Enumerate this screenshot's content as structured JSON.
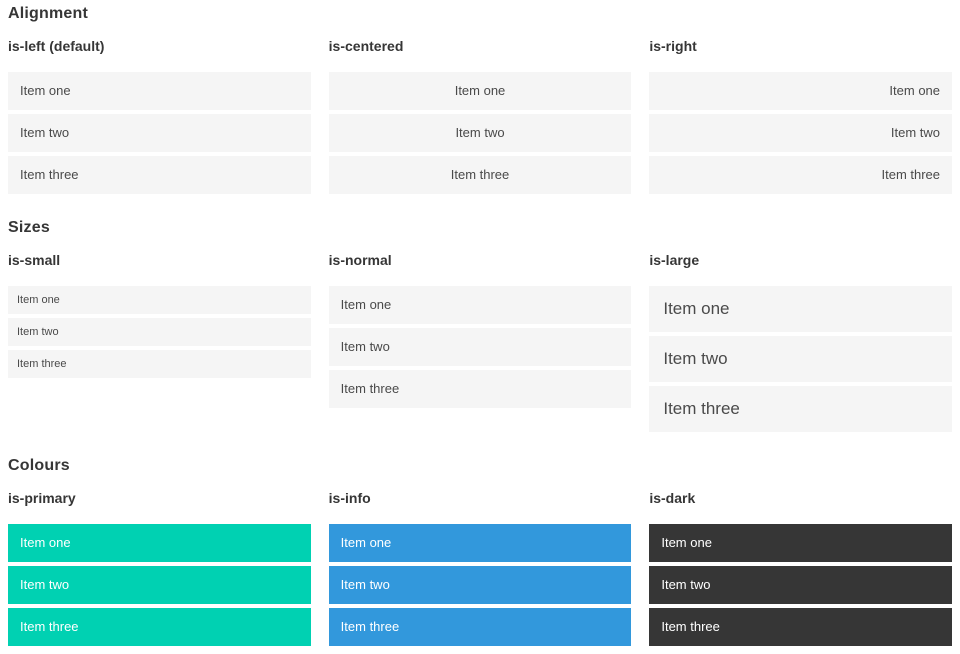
{
  "page": {
    "colors": {
      "primary": "#00d1b2",
      "info": "#3298dc",
      "dark": "#363636",
      "item_bg": "#f5f5f5",
      "item_text": "#4a4a4a",
      "heading": "#363636"
    },
    "sections": [
      {
        "title": "Alignment",
        "columns": [
          {
            "label": "is-left (default)",
            "variant": "align-left",
            "items": [
              "Item one",
              "Item two",
              "Item three"
            ]
          },
          {
            "label": "is-centered",
            "variant": "align-center",
            "items": [
              "Item one",
              "Item two",
              "Item three"
            ]
          },
          {
            "label": "is-right",
            "variant": "align-right",
            "items": [
              "Item one",
              "Item two",
              "Item three"
            ]
          }
        ]
      },
      {
        "title": "Sizes",
        "columns": [
          {
            "label": "is-small",
            "variant": "size-small",
            "items": [
              "Item one",
              "Item two",
              "Item three"
            ]
          },
          {
            "label": "is-normal",
            "variant": "size-normal",
            "items": [
              "Item one",
              "Item two",
              "Item three"
            ]
          },
          {
            "label": "is-large",
            "variant": "size-large",
            "items": [
              "Item one",
              "Item two",
              "Item three"
            ]
          }
        ]
      },
      {
        "title": "Colours",
        "columns": [
          {
            "label": "is-primary",
            "variant": "color-primary",
            "items": [
              "Item one",
              "Item two",
              "Item three"
            ]
          },
          {
            "label": "is-info",
            "variant": "color-info",
            "items": [
              "Item one",
              "Item two",
              "Item three"
            ]
          },
          {
            "label": "is-dark",
            "variant": "color-dark",
            "items": [
              "Item one",
              "Item two",
              "Item three"
            ]
          }
        ]
      }
    ]
  }
}
